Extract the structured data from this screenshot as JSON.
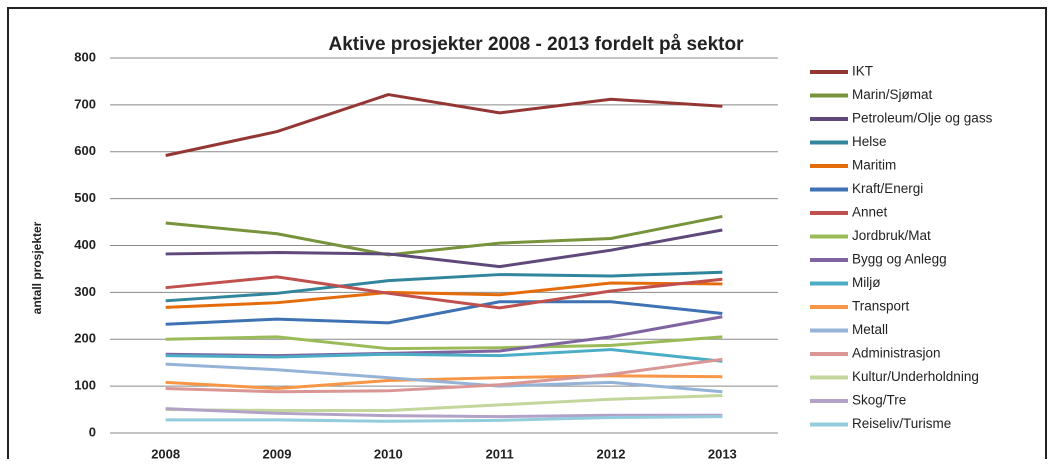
{
  "chart_data": {
    "type": "line",
    "title": "Aktive prosjekter 2008 - 2013 fordelt på sektor",
    "y_label": "antall prosjekter",
    "categories": [
      "2008",
      "2009",
      "2010",
      "2011",
      "2012",
      "2013"
    ],
    "ylim": [
      0,
      800
    ],
    "yticks": [
      0,
      100,
      200,
      300,
      400,
      500,
      600,
      700,
      800
    ],
    "grid": true,
    "legend": "right",
    "series": [
      {
        "name": "IKT",
        "color": "#943634",
        "values": [
          592,
          643,
          722,
          683,
          712,
          697
        ]
      },
      {
        "name": "Marin/Sjømat",
        "color": "#77933c",
        "values": [
          448,
          425,
          380,
          405,
          415,
          462
        ]
      },
      {
        "name": "Petroleum/Olje og gass",
        "color": "#5f497a",
        "values": [
          382,
          385,
          382,
          355,
          390,
          433
        ]
      },
      {
        "name": "Helse",
        "color": "#31859c",
        "values": [
          282,
          298,
          325,
          338,
          335,
          343
        ]
      },
      {
        "name": "Maritim",
        "color": "#e46c0a",
        "values": [
          268,
          278,
          300,
          295,
          320,
          318
        ]
      },
      {
        "name": "Kraft/Energi",
        "color": "#3f72b3",
        "values": [
          232,
          243,
          235,
          280,
          280,
          255
        ]
      },
      {
        "name": "Annet",
        "color": "#c0504d",
        "values": [
          310,
          333,
          298,
          267,
          303,
          328
        ]
      },
      {
        "name": "Jordbruk/Mat",
        "color": "#9bbb59",
        "values": [
          200,
          205,
          180,
          182,
          187,
          205
        ]
      },
      {
        "name": "Bygg og Anlegg",
        "color": "#8064a2",
        "values": [
          168,
          165,
          170,
          175,
          205,
          248
        ]
      },
      {
        "name": "Miljø",
        "color": "#4bacc6",
        "values": [
          165,
          162,
          168,
          165,
          178,
          153
        ]
      },
      {
        "name": "Transport",
        "color": "#f79646",
        "values": [
          108,
          95,
          112,
          118,
          122,
          120
        ]
      },
      {
        "name": "Metall",
        "color": "#95b3d7",
        "values": [
          147,
          135,
          118,
          100,
          108,
          88
        ]
      },
      {
        "name": "Administrasjon",
        "color": "#d99694",
        "values": [
          95,
          88,
          90,
          103,
          125,
          157
        ]
      },
      {
        "name": "Kultur/Underholdning",
        "color": "#c3d69b",
        "values": [
          50,
          48,
          48,
          60,
          72,
          80
        ]
      },
      {
        "name": "Skog/Tre",
        "color": "#b3a2c7",
        "values": [
          52,
          42,
          37,
          35,
          38,
          38
        ]
      },
      {
        "name": "Reiseliv/Turisme",
        "color": "#93cddd",
        "values": [
          28,
          28,
          25,
          27,
          33,
          35
        ]
      }
    ]
  }
}
